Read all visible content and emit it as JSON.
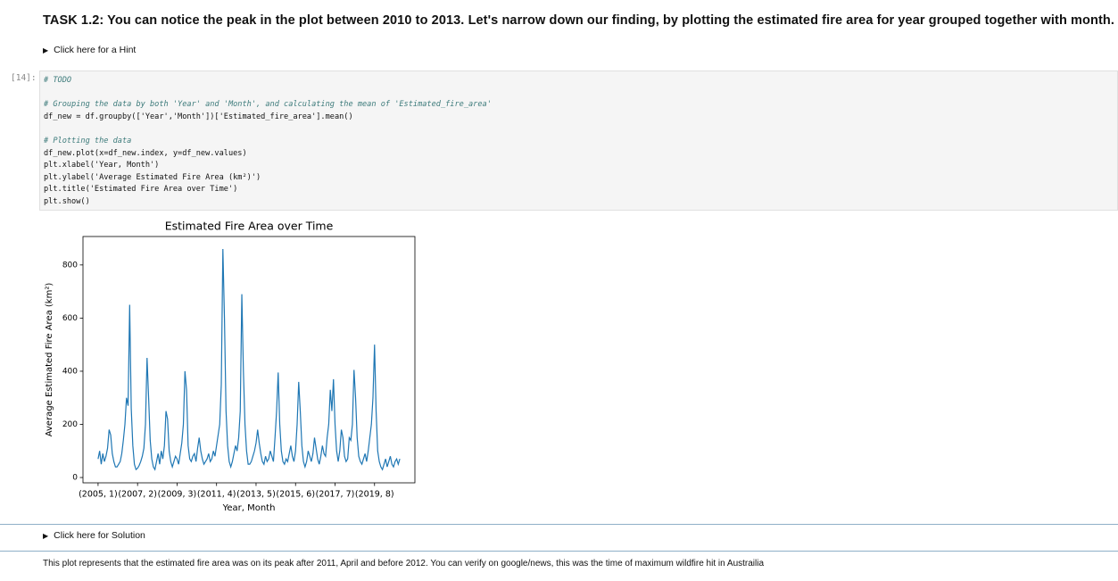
{
  "task": {
    "title": "TASK 1.2: You can notice the peak in the plot between 2010 to 2013. Let's narrow down our finding, by plotting the estimated fire area for year grouped together with month.",
    "hint": "Click here for a Hint"
  },
  "cell": {
    "prompt": "[14]:",
    "code_blocks": [
      [
        "# TODO"
      ],
      [
        "# Grouping the data by both 'Year' and 'Month', and calculating the mean of 'Estimated_fire_area'",
        "df_new = df.groupby(['Year','Month'])['Estimated_fire_area'].mean()"
      ],
      [
        "# Plotting the data",
        "df_new.plot(x=df_new.index, y=df_new.values)",
        "plt.xlabel('Year, Month')",
        "plt.ylabel('Average Estimated Fire Area (km²)')",
        "plt.title('Estimated Fire Area over Time')",
        "plt.show()"
      ]
    ]
  },
  "chart_data": {
    "type": "line",
    "title": "Estimated Fire Area over Time",
    "xlabel": "Year, Month",
    "ylabel": "Average Estimated Fire Area (km²)",
    "color": "#1f77b4",
    "values": [
      70,
      100,
      50,
      90,
      60,
      80,
      110,
      180,
      160,
      90,
      60,
      40,
      40,
      50,
      60,
      90,
      140,
      200,
      300,
      270,
      650,
      260,
      120,
      50,
      30,
      35,
      45,
      60,
      80,
      110,
      200,
      450,
      300,
      140,
      70,
      40,
      30,
      60,
      90,
      50,
      100,
      70,
      120,
      250,
      220,
      100,
      60,
      40,
      60,
      80,
      70,
      50,
      90,
      130,
      200,
      400,
      330,
      120,
      70,
      60,
      80,
      90,
      60,
      110,
      150,
      100,
      70,
      50,
      60,
      70,
      90,
      60,
      70,
      100,
      80,
      120,
      160,
      200,
      350,
      860,
      600,
      250,
      120,
      60,
      40,
      60,
      90,
      120,
      100,
      150,
      250,
      690,
      400,
      200,
      100,
      50,
      50,
      60,
      80,
      100,
      130,
      180,
      130,
      90,
      60,
      50,
      80,
      60,
      70,
      100,
      80,
      60,
      150,
      250,
      395,
      200,
      100,
      60,
      50,
      70,
      60,
      90,
      120,
      80,
      60,
      100,
      200,
      360,
      250,
      120,
      60,
      40,
      60,
      100,
      80,
      60,
      90,
      150,
      110,
      70,
      50,
      80,
      120,
      90,
      80,
      150,
      200,
      330,
      250,
      370,
      200,
      100,
      60,
      100,
      180,
      150,
      80,
      60,
      70,
      150,
      140,
      200,
      405,
      300,
      150,
      80,
      60,
      50,
      70,
      90,
      60,
      100,
      150,
      200,
      300,
      500,
      250,
      100,
      60,
      40,
      30,
      50,
      70,
      40,
      60,
      80,
      50,
      40,
      60,
      70,
      50,
      70
    ],
    "xlim": [
      -9.55,
      200.55
    ],
    "xticks": [
      {
        "value": 0,
        "label": "(2005, 1)"
      },
      {
        "value": 25,
        "label": "(2007, 2)"
      },
      {
        "value": 50,
        "label": "(2009, 3)"
      },
      {
        "value": 75,
        "label": "(2011, 4)"
      },
      {
        "value": 100,
        "label": "(2013, 5)"
      },
      {
        "value": 125,
        "label": "(2015, 6)"
      },
      {
        "value": 150,
        "label": "(2017, 7)"
      },
      {
        "value": 175,
        "label": "(2019, 8)"
      }
    ],
    "ylim": [
      -20,
      907
    ],
    "yticks": [
      0,
      200,
      400,
      600,
      800
    ]
  },
  "solution": "Click here for Solution",
  "conclusion": "This plot represents that the estimated fire area was on its peak after 2011, April and before 2012. You can verify on google/news, this was the time of maximum wildfire hit in Austrailia"
}
